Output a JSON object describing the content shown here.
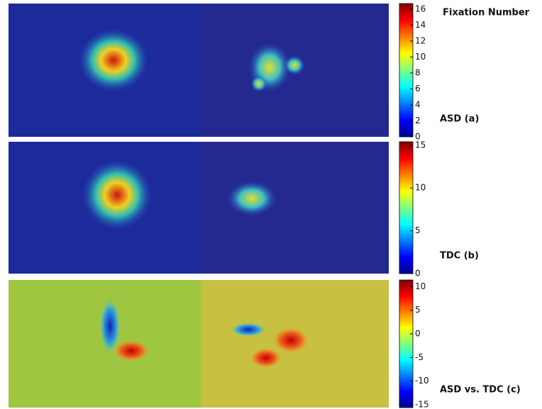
{
  "chart_data": [
    {
      "type": "heatmap",
      "title": "ASD (a)",
      "colorbar_title": "Fixation Number",
      "clim": [
        0,
        16.7
      ],
      "cticks": [
        0,
        2,
        4,
        6,
        8,
        10,
        12,
        14,
        16
      ]
    },
    {
      "type": "heatmap",
      "title": "TDC (b)",
      "clim": [
        0,
        15.4
      ],
      "cticks": [
        0,
        5,
        10,
        15
      ]
    },
    {
      "type": "heatmap",
      "title": "ASD vs. TDC (c)",
      "clim": [
        -15.6,
        11.4
      ],
      "cticks": [
        -15,
        -10,
        -5,
        0,
        5,
        10
      ]
    }
  ]
}
